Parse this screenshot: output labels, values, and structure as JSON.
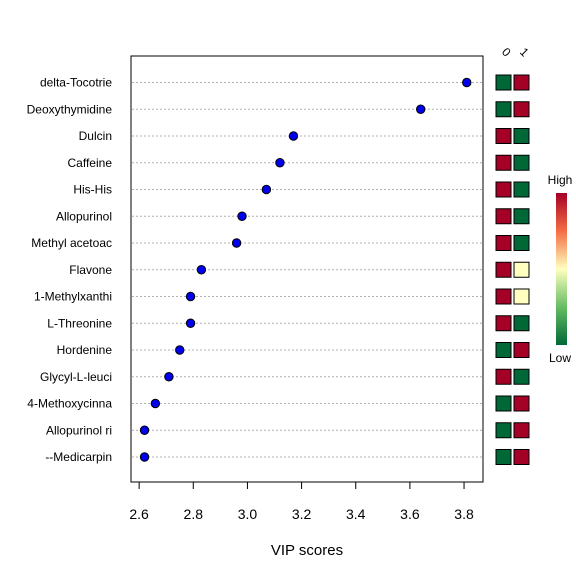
{
  "chart_data": {
    "type": "scatter",
    "xlabel": "VIP scores",
    "xlim": [
      2.57,
      3.87
    ],
    "xticks": [
      2.6,
      2.8,
      3.0,
      3.2,
      3.4,
      3.6,
      3.8
    ],
    "xtick_labels": [
      "2.6",
      "2.8",
      "3.0",
      "3.2",
      "3.4",
      "3.6",
      "3.8"
    ],
    "grid": "horizontal dotted",
    "point_color": "#0000ee",
    "categories": [
      "delta-Tocotrie",
      "Deoxythymidine",
      "Dulcin",
      "Caffeine",
      "His-His",
      "Allopurinol",
      "Methyl acetoac",
      "Flavone",
      "1-Methylxanthi",
      "L-Threonine",
      "Hordenine",
      "Glycyl-L-leuci",
      "4-Methoxycinna",
      "Allopurinol ri",
      "--Medicarpin"
    ],
    "values": [
      3.81,
      3.64,
      3.17,
      3.12,
      3.07,
      2.98,
      2.96,
      2.83,
      2.79,
      2.79,
      2.75,
      2.71,
      2.66,
      2.62,
      2.62
    ],
    "heatmap": {
      "group_labels": [
        "0",
        "1"
      ],
      "cell_levels": [
        [
          0,
          1
        ],
        [
          0,
          1
        ],
        [
          1,
          0
        ],
        [
          1,
          0
        ],
        [
          1,
          0
        ],
        [
          1,
          0
        ],
        [
          1,
          0
        ],
        [
          1,
          0.5
        ],
        [
          1,
          0.5
        ],
        [
          1,
          0
        ],
        [
          0,
          1
        ],
        [
          1,
          0
        ],
        [
          0,
          1
        ],
        [
          0,
          1
        ],
        [
          0,
          1
        ]
      ],
      "legend_high": "High",
      "legend_low": "Low",
      "colors": {
        "high": "#a50026",
        "mid": "#ffffbf",
        "low": "#006837"
      }
    }
  }
}
